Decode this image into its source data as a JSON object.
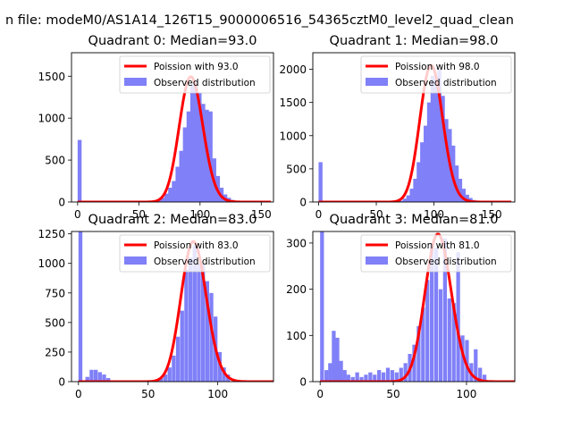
{
  "chart_data": {
    "suptitle": "n file: modeM0/AS1A14_126T15_9000006516_54365cztM0_level2_quad_clean",
    "legend_position": "top-right",
    "colors": {
      "hist": "#8080f8",
      "fit": "#ff0000"
    },
    "panels": [
      {
        "type": "bar",
        "title": "Quadrant 0: Median=93.0",
        "median": 93.0,
        "xlim": [
          -5,
          160
        ],
        "ylim": [
          0,
          1780
        ],
        "xticks": [
          0,
          50,
          100,
          150
        ],
        "yticks": [
          0,
          500,
          1000,
          1500
        ],
        "bin_width": 3.25,
        "legend": {
          "fit_label": "Poission with 93.0",
          "hist_label": "Observed distribution"
        },
        "hist_x": [
          0,
          65,
          68,
          71,
          74,
          77,
          80,
          83,
          86,
          89,
          92,
          95,
          98,
          101,
          104,
          107,
          110,
          113,
          116,
          119,
          122,
          125,
          128
        ],
        "hist_y": [
          740,
          20,
          50,
          100,
          170,
          250,
          420,
          610,
          890,
          1080,
          1400,
          1450,
          1300,
          1170,
          1100,
          1080,
          520,
          310,
          170,
          90,
          50,
          25,
          10
        ]
      },
      {
        "type": "bar",
        "title": "Quadrant 1: Median=98.0",
        "median": 98.0,
        "xlim": [
          -5,
          170
        ],
        "ylim": [
          0,
          2250
        ],
        "xticks": [
          0,
          50,
          100,
          150
        ],
        "yticks": [
          0,
          500,
          1000,
          1500,
          2000
        ],
        "bin_width": 3.4,
        "legend": {
          "fit_label": "Poission with 98.0",
          "hist_label": "Observed distribution"
        },
        "hist_x": [
          0,
          70,
          73,
          76,
          79,
          82,
          85,
          88,
          91,
          94,
          97,
          100,
          103,
          106,
          109,
          112,
          115,
          118,
          121,
          124,
          127,
          130,
          133,
          136
        ],
        "hist_y": [
          600,
          20,
          50,
          100,
          200,
          350,
          600,
          900,
          1150,
          1500,
          1900,
          1850,
          2000,
          1600,
          1250,
          1100,
          850,
          550,
          350,
          200,
          110,
          60,
          30,
          15
        ]
      },
      {
        "type": "bar",
        "title": "Quadrant 2: Median=83.0",
        "median": 83.0,
        "xlim": [
          -5,
          140
        ],
        "ylim": [
          0,
          1270
        ],
        "xticks": [
          0,
          50,
          100
        ],
        "yticks": [
          0,
          250,
          500,
          750,
          1000,
          1250
        ],
        "bin_width": 2.8,
        "legend": {
          "fit_label": "Poission with 83.0",
          "hist_label": "Observed distribution"
        },
        "hist_x": [
          0,
          5,
          8,
          11,
          14,
          17,
          20,
          55,
          58,
          61,
          64,
          67,
          70,
          73,
          76,
          79,
          82,
          85,
          88,
          91,
          94,
          97,
          100,
          103,
          106
        ],
        "hist_y": [
          1270,
          40,
          100,
          100,
          80,
          60,
          30,
          20,
          30,
          60,
          120,
          220,
          380,
          600,
          950,
          1050,
          1150,
          1000,
          1000,
          850,
          750,
          550,
          250,
          120,
          60
        ]
      },
      {
        "type": "bar",
        "title": "Quadrant 3: Median=81.0",
        "median": 81.0,
        "xlim": [
          -5,
          133
        ],
        "ylim": [
          0,
          325
        ],
        "xticks": [
          0,
          50,
          100
        ],
        "yticks": [
          0,
          100,
          200,
          300
        ],
        "bin_width": 2.6,
        "legend": {
          "fit_label": "Poission with 81.0",
          "hist_label": "Observed distribution"
        },
        "hist_x": [
          0,
          3,
          5.5,
          8,
          10.5,
          13,
          15.5,
          18,
          21,
          24,
          27,
          30,
          33,
          36,
          39,
          42,
          45,
          48,
          51,
          54,
          57,
          60,
          63,
          66,
          69,
          72,
          75,
          78,
          81,
          84,
          87,
          90,
          93,
          96,
          99,
          102,
          105,
          108,
          111
        ],
        "hist_y": [
          325,
          25,
          40,
          110,
          95,
          45,
          25,
          15,
          10,
          20,
          10,
          15,
          20,
          15,
          25,
          20,
          30,
          25,
          20,
          30,
          40,
          60,
          80,
          120,
          160,
          220,
          300,
          290,
          200,
          310,
          180,
          170,
          280,
          100,
          90,
          40,
          70,
          30,
          15
        ]
      }
    ]
  }
}
